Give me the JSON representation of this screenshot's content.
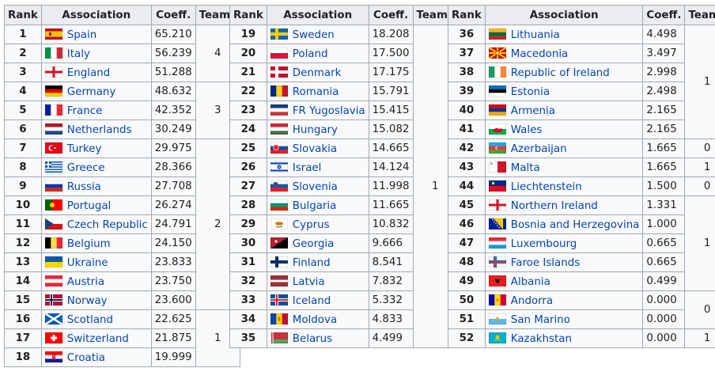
{
  "headers": {
    "rank": "Rank",
    "association": "Association",
    "coeff": "Coeff.",
    "teams": "Teams"
  },
  "tables": [
    {
      "rows": [
        {
          "rank": "1",
          "name": "Spain",
          "coeff": "65.210",
          "flag": "spain-flag"
        },
        {
          "rank": "2",
          "name": "Italy",
          "coeff": "56.239",
          "flag": "italy-flag"
        },
        {
          "rank": "3",
          "name": "England",
          "coeff": "51.288",
          "flag": "england-flag"
        },
        {
          "rank": "4",
          "name": "Germany",
          "coeff": "48.632",
          "flag": "germany-flag"
        },
        {
          "rank": "5",
          "name": "France",
          "coeff": "42.352",
          "flag": "france-flag"
        },
        {
          "rank": "6",
          "name": "Netherlands",
          "coeff": "30.249",
          "flag": "netherlands-flag"
        },
        {
          "rank": "7",
          "name": "Turkey",
          "coeff": "29.975",
          "flag": "turkey-flag"
        },
        {
          "rank": "8",
          "name": "Greece",
          "coeff": "28.366",
          "flag": "greece-flag"
        },
        {
          "rank": "9",
          "name": "Russia",
          "coeff": "27.708",
          "flag": "russia-flag"
        },
        {
          "rank": "10",
          "name": "Portugal",
          "coeff": "26.274",
          "flag": "portugal-flag"
        },
        {
          "rank": "11",
          "name": "Czech Republic",
          "coeff": "24.791",
          "flag": "czech-republic-flag"
        },
        {
          "rank": "12",
          "name": "Belgium",
          "coeff": "24.150",
          "flag": "belgium-flag"
        },
        {
          "rank": "13",
          "name": "Ukraine",
          "coeff": "23.833",
          "flag": "ukraine-flag"
        },
        {
          "rank": "14",
          "name": "Austria",
          "coeff": "23.750",
          "flag": "austria-flag"
        },
        {
          "rank": "15",
          "name": "Norway",
          "coeff": "23.600",
          "flag": "norway-flag"
        },
        {
          "rank": "16",
          "name": "Scotland",
          "coeff": "22.625",
          "flag": "scotland-flag"
        },
        {
          "rank": "17",
          "name": "Switzerland",
          "coeff": "21.875",
          "flag": "switzerland-flag"
        },
        {
          "rank": "18",
          "name": "Croatia",
          "coeff": "19.999",
          "flag": "croatia-flag"
        }
      ],
      "teams": [
        {
          "value": "4",
          "rows": 3
        },
        {
          "value": "3",
          "rows": 3
        },
        {
          "value": "2",
          "rows": 9
        },
        {
          "value": "1",
          "rows": 3
        }
      ]
    },
    {
      "rows": [
        {
          "rank": "19",
          "name": "Sweden",
          "coeff": "18.208",
          "flag": "sweden-flag"
        },
        {
          "rank": "20",
          "name": "Poland",
          "coeff": "17.500",
          "flag": "poland-flag"
        },
        {
          "rank": "21",
          "name": "Denmark",
          "coeff": "17.175",
          "flag": "denmark-flag"
        },
        {
          "rank": "22",
          "name": "Romania",
          "coeff": "15.791",
          "flag": "romania-flag"
        },
        {
          "rank": "23",
          "name": "FR Yugoslavia",
          "coeff": "15.415",
          "flag": "fr-yugoslavia-flag"
        },
        {
          "rank": "24",
          "name": "Hungary",
          "coeff": "15.082",
          "flag": "hungary-flag"
        },
        {
          "rank": "25",
          "name": "Slovakia",
          "coeff": "14.665",
          "flag": "slovakia-flag"
        },
        {
          "rank": "26",
          "name": "Israel",
          "coeff": "14.124",
          "flag": "israel-flag"
        },
        {
          "rank": "27",
          "name": "Slovenia",
          "coeff": "11.998",
          "flag": "slovenia-flag"
        },
        {
          "rank": "28",
          "name": "Bulgaria",
          "coeff": "11.665",
          "flag": "bulgaria-flag"
        },
        {
          "rank": "29",
          "name": "Cyprus",
          "coeff": "10.832",
          "flag": "cyprus-flag"
        },
        {
          "rank": "30",
          "name": "Georgia",
          "coeff": "9.666",
          "flag": "georgia-flag"
        },
        {
          "rank": "31",
          "name": "Finland",
          "coeff": "8.541",
          "flag": "finland-flag"
        },
        {
          "rank": "32",
          "name": "Latvia",
          "coeff": "7.832",
          "flag": "latvia-flag"
        },
        {
          "rank": "33",
          "name": "Iceland",
          "coeff": "5.332",
          "flag": "iceland-flag"
        },
        {
          "rank": "34",
          "name": "Moldova",
          "coeff": "4.833",
          "flag": "moldova-flag"
        },
        {
          "rank": "35",
          "name": "Belarus",
          "coeff": "4.499",
          "flag": "belarus-flag"
        }
      ],
      "teams": [
        {
          "value": "1",
          "rows": 17
        }
      ]
    },
    {
      "rows": [
        {
          "rank": "36",
          "name": "Lithuania",
          "coeff": "4.498",
          "flag": "lithuania-flag"
        },
        {
          "rank": "37",
          "name": "Macedonia",
          "coeff": "3.497",
          "flag": "macedonia-flag"
        },
        {
          "rank": "38",
          "name": "Republic of Ireland",
          "coeff": "2.998",
          "flag": "ireland-flag"
        },
        {
          "rank": "39",
          "name": "Estonia",
          "coeff": "2.498",
          "flag": "estonia-flag"
        },
        {
          "rank": "40",
          "name": "Armenia",
          "coeff": "2.165",
          "flag": "armenia-flag"
        },
        {
          "rank": "41",
          "name": "Wales",
          "coeff": "2.165",
          "flag": "wales-flag"
        },
        {
          "rank": "42",
          "name": "Azerbaijan",
          "coeff": "1.665",
          "flag": "azerbaijan-flag"
        },
        {
          "rank": "43",
          "name": "Malta",
          "coeff": "1.665",
          "flag": "malta-flag"
        },
        {
          "rank": "44",
          "name": "Liechtenstein",
          "coeff": "1.500",
          "flag": "liechtenstein-flag"
        },
        {
          "rank": "45",
          "name": "Northern Ireland",
          "coeff": "1.331",
          "flag": "northern-ireland-flag"
        },
        {
          "rank": "46",
          "name": "Bosnia and Herzegovina",
          "coeff": "1.000",
          "flag": "bosnia-flag"
        },
        {
          "rank": "47",
          "name": "Luxembourg",
          "coeff": "0.665",
          "flag": "luxembourg-flag"
        },
        {
          "rank": "48",
          "name": "Faroe Islands",
          "coeff": "0.665",
          "flag": "faroe-islands-flag"
        },
        {
          "rank": "49",
          "name": "Albania",
          "coeff": "0.499",
          "flag": "albania-flag"
        },
        {
          "rank": "50",
          "name": "Andorra",
          "coeff": "0.000",
          "flag": "andorra-flag"
        },
        {
          "rank": "51",
          "name": "San Marino",
          "coeff": "0.000",
          "flag": "san-marino-flag"
        },
        {
          "rank": "52",
          "name": "Kazakhstan",
          "coeff": "0.000",
          "flag": "kazakhstan-flag"
        }
      ],
      "teams": [
        {
          "value": "1",
          "rows": 6
        },
        {
          "value": "0",
          "rows": 1
        },
        {
          "value": "1",
          "rows": 1
        },
        {
          "value": "0",
          "rows": 1
        },
        {
          "value": "1",
          "rows": 5
        },
        {
          "value": "0",
          "rows": 2
        },
        {
          "value": "1",
          "rows": 1
        }
      ]
    }
  ]
}
